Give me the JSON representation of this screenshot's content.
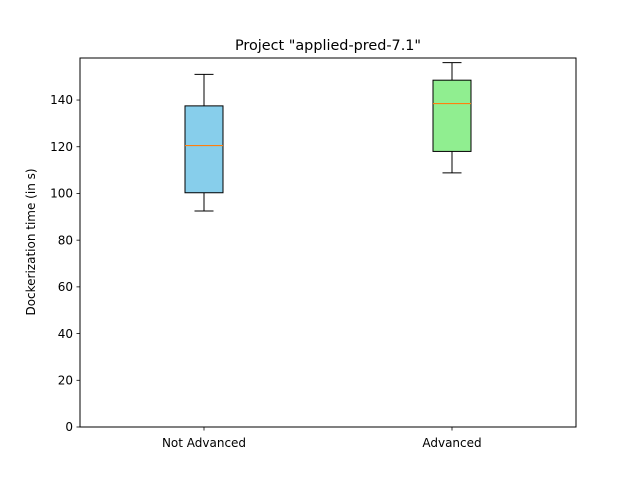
{
  "chart_data": {
    "type": "boxplot",
    "title": "Project \"applied-pred-7.1\"",
    "xlabel": "",
    "ylabel": "Dockerization time (in s)",
    "ylim": [
      0,
      158
    ],
    "yticks": [
      0,
      20,
      40,
      60,
      80,
      100,
      120,
      140
    ],
    "grid": false,
    "categories": [
      "Not Advanced",
      "Advanced"
    ],
    "boxes": [
      {
        "label": "Not Advanced",
        "whisker_low": 92.5,
        "q1": 100.3,
        "median": 120.5,
        "q3": 137.5,
        "whisker_high": 151,
        "fill_color": "#87ceeb"
      },
      {
        "label": "Advanced",
        "whisker_low": 108.8,
        "q1": 118,
        "median": 138.5,
        "q3": 148.5,
        "whisker_high": 156,
        "fill_color": "#90ee90"
      }
    ],
    "median_color": "#ff7f0e"
  }
}
